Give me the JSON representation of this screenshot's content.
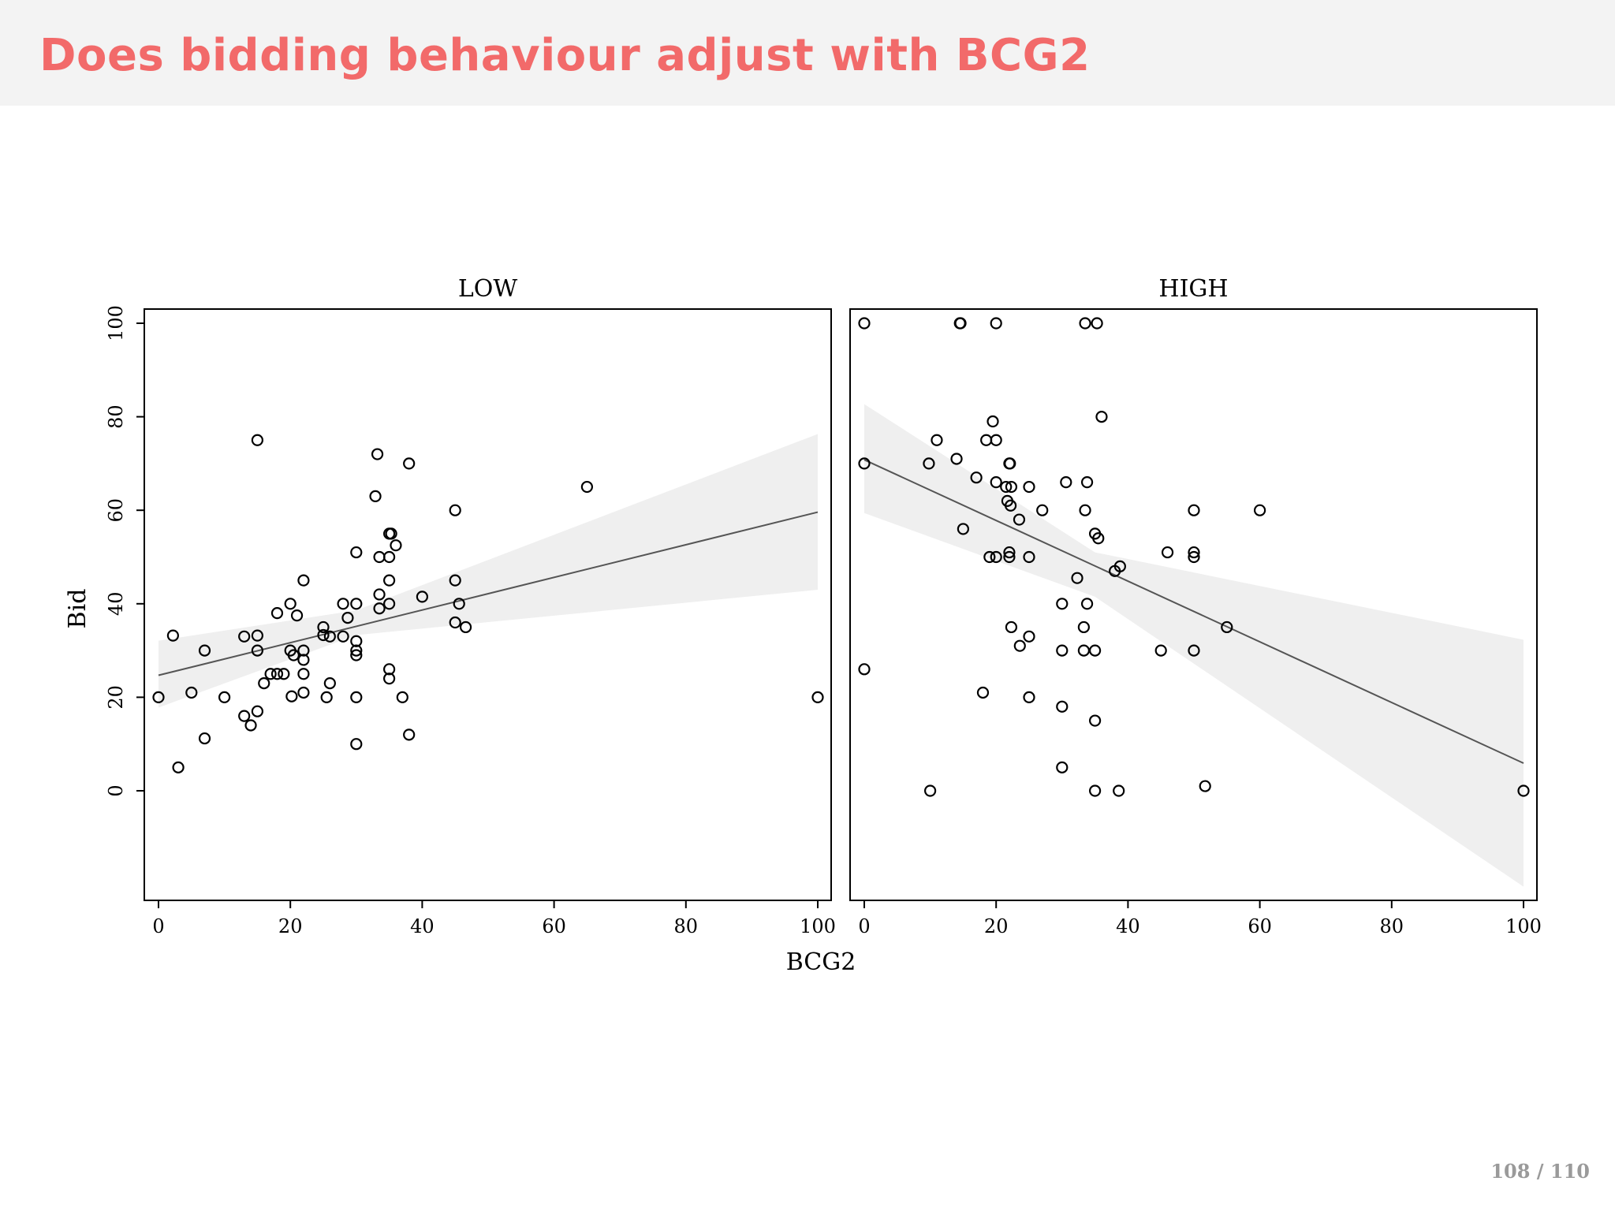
{
  "slide": {
    "title": "Does bidding behaviour adjust with BCG2",
    "page_number": "108 / 110",
    "accent_color": "#f26a6a",
    "title_bar_color": "#f3f3f3"
  },
  "chart_data": {
    "type": "scatter",
    "xlabel": "BCG2",
    "ylabel": "Bid",
    "xlim": [
      0,
      100
    ],
    "ylim": [
      -23,
      103
    ],
    "xticks": [
      0,
      20,
      40,
      60,
      80,
      100
    ],
    "yticks": [
      0,
      20,
      40,
      60,
      80,
      100
    ],
    "grid": false,
    "fit": "linear regression with confidence band",
    "band_color": "#efefef",
    "line_color": "#555555",
    "panels": [
      {
        "name": "LOW",
        "fit_line": {
          "x": [
            0,
            100
          ],
          "y": [
            24.7,
            59.6
          ]
        },
        "band": {
          "x": [
            0,
            30,
            100
          ],
          "upper": [
            32.1,
            38.6,
            76.3
          ],
          "lower": [
            17.8,
            33.3,
            43.0
          ]
        },
        "points": [
          [
            0,
            20
          ],
          [
            2.2,
            33.2
          ],
          [
            3,
            5
          ],
          [
            5,
            21
          ],
          [
            7,
            11.2
          ],
          [
            7,
            30
          ],
          [
            10,
            20
          ],
          [
            13,
            16
          ],
          [
            13,
            33
          ],
          [
            14,
            14
          ],
          [
            15,
            17
          ],
          [
            15,
            30
          ],
          [
            15,
            33.2
          ],
          [
            15,
            75
          ],
          [
            16,
            23
          ],
          [
            17,
            25
          ],
          [
            18,
            25
          ],
          [
            18,
            38
          ],
          [
            19,
            25
          ],
          [
            20,
            40
          ],
          [
            20,
            30
          ],
          [
            20.2,
            20.2
          ],
          [
            20.5,
            29
          ],
          [
            21,
            37.5
          ],
          [
            22,
            21
          ],
          [
            22,
            28
          ],
          [
            22,
            30
          ],
          [
            22,
            25
          ],
          [
            22,
            45
          ],
          [
            25,
            35
          ],
          [
            25,
            33.3
          ],
          [
            25.5,
            20
          ],
          [
            26,
            23
          ],
          [
            26,
            33
          ],
          [
            28,
            40
          ],
          [
            28,
            33
          ],
          [
            28.7,
            37
          ],
          [
            30,
            20
          ],
          [
            30,
            29
          ],
          [
            30,
            30
          ],
          [
            30,
            32
          ],
          [
            30,
            40
          ],
          [
            30,
            51
          ],
          [
            30,
            10
          ],
          [
            32.9,
            63
          ],
          [
            33.2,
            72
          ],
          [
            33.5,
            39
          ],
          [
            33.5,
            42
          ],
          [
            33.5,
            50
          ],
          [
            35,
            55
          ],
          [
            35,
            50
          ],
          [
            35,
            45
          ],
          [
            35,
            40
          ],
          [
            35,
            26
          ],
          [
            35,
            24
          ],
          [
            35.3,
            55
          ],
          [
            36,
            52.5
          ],
          [
            37,
            20
          ],
          [
            38,
            12
          ],
          [
            38,
            70
          ],
          [
            40,
            41.5
          ],
          [
            45,
            60
          ],
          [
            45,
            45
          ],
          [
            45,
            36
          ],
          [
            45.6,
            40
          ],
          [
            46.6,
            35
          ],
          [
            65,
            65
          ],
          [
            100,
            20
          ]
        ]
      },
      {
        "name": "HIGH",
        "fit_line": {
          "x": [
            0,
            100
          ],
          "y": [
            70.8,
            5.9
          ]
        },
        "band": {
          "x": [
            0,
            35,
            100
          ],
          "upper": [
            82.7,
            51.0,
            32.3
          ],
          "lower": [
            59.4,
            41.5,
            -20.5
          ]
        },
        "points": [
          [
            0,
            100
          ],
          [
            0,
            70
          ],
          [
            0,
            26
          ],
          [
            9.8,
            70
          ],
          [
            10,
            0
          ],
          [
            11,
            75
          ],
          [
            14,
            71
          ],
          [
            14.5,
            100
          ],
          [
            14.6,
            100
          ],
          [
            15,
            56
          ],
          [
            17,
            67
          ],
          [
            18,
            21
          ],
          [
            18.5,
            75
          ],
          [
            19,
            50
          ],
          [
            19.5,
            79
          ],
          [
            20,
            75
          ],
          [
            20,
            66
          ],
          [
            20,
            50
          ],
          [
            20,
            100
          ],
          [
            21.5,
            65
          ],
          [
            21.7,
            62
          ],
          [
            22,
            50
          ],
          [
            22,
            51
          ],
          [
            22,
            70
          ],
          [
            22.1,
            70
          ],
          [
            22.2,
            61
          ],
          [
            22.3,
            65
          ],
          [
            22.3,
            35
          ],
          [
            23.5,
            58
          ],
          [
            23.6,
            31
          ],
          [
            25,
            65
          ],
          [
            25,
            50
          ],
          [
            25,
            33
          ],
          [
            25,
            20
          ],
          [
            27,
            60
          ],
          [
            30,
            40
          ],
          [
            30,
            30
          ],
          [
            30,
            18
          ],
          [
            30,
            5
          ],
          [
            30.6,
            66
          ],
          [
            32.3,
            45.5
          ],
          [
            33.3,
            30
          ],
          [
            33.3,
            35
          ],
          [
            33.5,
            60
          ],
          [
            33.5,
            100
          ],
          [
            33.8,
            66
          ],
          [
            33.8,
            40
          ],
          [
            35,
            0
          ],
          [
            35,
            15
          ],
          [
            35,
            30
          ],
          [
            35,
            55
          ],
          [
            35.3,
            100
          ],
          [
            35.5,
            54
          ],
          [
            36,
            80
          ],
          [
            38,
            47
          ],
          [
            38.8,
            48
          ],
          [
            38.6,
            0
          ],
          [
            45,
            30
          ],
          [
            46,
            51
          ],
          [
            50,
            30
          ],
          [
            50,
            51
          ],
          [
            50,
            50
          ],
          [
            50,
            60
          ],
          [
            51.7,
            1
          ],
          [
            55,
            35
          ],
          [
            60,
            60
          ],
          [
            100,
            0
          ]
        ]
      }
    ]
  }
}
